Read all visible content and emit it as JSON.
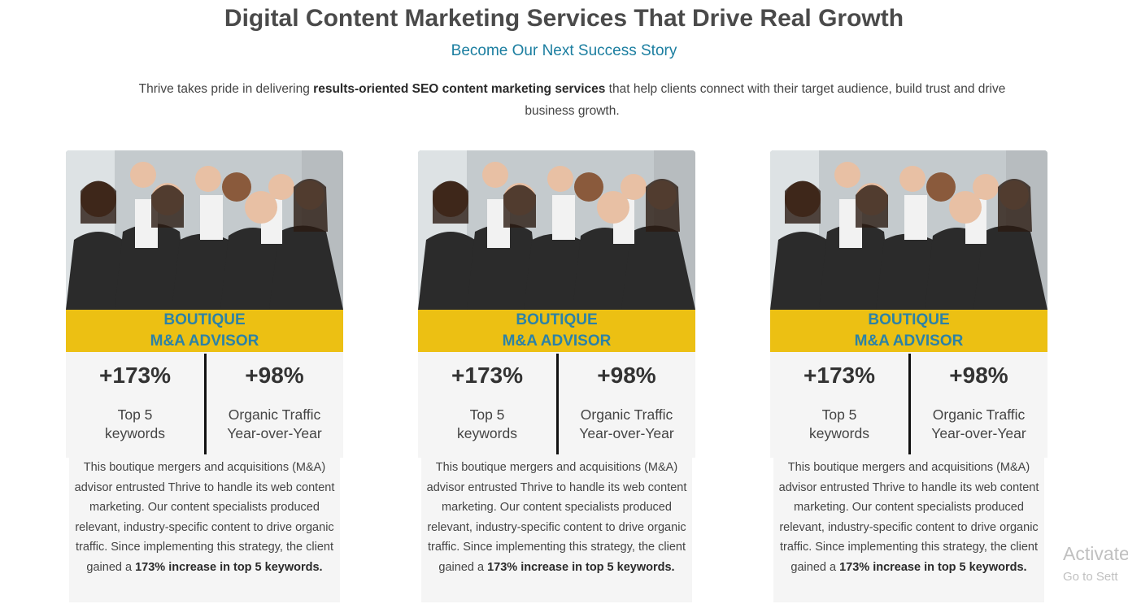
{
  "header": {
    "title": "Digital Content Marketing Services That Drive Real Growth",
    "subtitle": "Become Our Next Success Story",
    "intro_before": "Thrive takes pride in delivering ",
    "intro_bold": "results-oriented SEO content marketing services",
    "intro_after": " that help clients connect with their target audience, build trust and drive business growth."
  },
  "cards": [
    {
      "banner_line1": "BOUTIQUE",
      "banner_line2": "M&A ADVISOR",
      "stat1_value": "+173%",
      "stat1_label_line1": "Top 5",
      "stat1_label_line2": "keywords",
      "stat2_value": "+98%",
      "stat2_label_line1": "Organic Traffic",
      "stat2_label_line2": "Year-over-Year",
      "desc_text": "This boutique mergers and acquisitions (M&A) advisor entrusted Thrive to handle its web content marketing. Our content specialists produced relevant, industry-specific content to drive organic traffic. Since implementing this strategy, the client gained a ",
      "desc_bold": "173% increase in top 5 keywords."
    },
    {
      "banner_line1": "BOUTIQUE",
      "banner_line2": "M&A ADVISOR",
      "stat1_value": "+173%",
      "stat1_label_line1": "Top 5",
      "stat1_label_line2": "keywords",
      "stat2_value": "+98%",
      "stat2_label_line1": "Organic Traffic",
      "stat2_label_line2": "Year-over-Year",
      "desc_text": "This boutique mergers and acquisitions (M&A) advisor entrusted Thrive to handle its web content marketing. Our content specialists produced relevant, industry-specific content to drive organic traffic. Since implementing this strategy, the client gained a ",
      "desc_bold": "173% increase in top 5 keywords."
    },
    {
      "banner_line1": "BOUTIQUE",
      "banner_line2": "M&A ADVISOR",
      "stat1_value": "+173%",
      "stat1_label_line1": "Top 5",
      "stat1_label_line2": "keywords",
      "stat2_value": "+98%",
      "stat2_label_line1": "Organic Traffic",
      "stat2_label_line2": "Year-over-Year",
      "desc_text": "This boutique mergers and acquisitions (M&A) advisor entrusted Thrive to handle its web content marketing. Our content specialists produced relevant, industry-specific content to drive organic traffic. Since implementing this strategy, the client gained a ",
      "desc_bold": "173% increase in top 5 keywords."
    }
  ],
  "watermark": {
    "line1": "Activate",
    "line2": "Go to Sett"
  },
  "colors": {
    "banner_bg": "#ecc013",
    "banner_text": "#2c82a6",
    "subtitle": "#1b7ea0"
  }
}
